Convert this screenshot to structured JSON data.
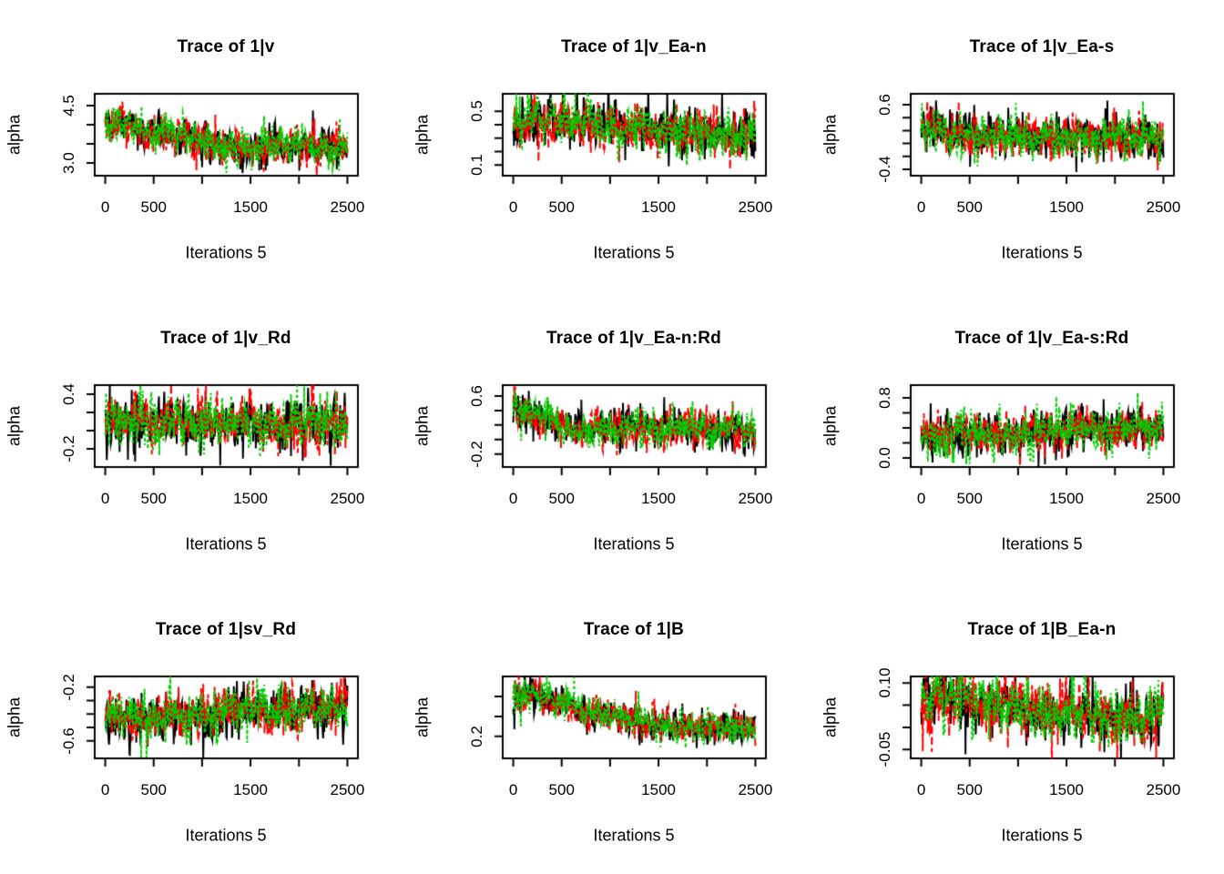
{
  "figure": {
    "background": "#FFFFFF",
    "rows": 3,
    "cols": 3,
    "description": "Grid of 9 MCMC trace plots, 3 chains each"
  },
  "chart_data": [
    {
      "type": "line",
      "title": "Trace of 1|v",
      "ylabel": "alpha",
      "xlabel": "Iterations 5",
      "xlim": [
        0,
        2500
      ],
      "ylim": [
        2.67,
        4.81
      ],
      "grid": false,
      "legend": "none",
      "x_ticks": [
        {
          "v": 0,
          "label": "0"
        },
        {
          "v": 500,
          "label": "500"
        },
        {
          "v": 1000,
          "label": ""
        },
        {
          "v": 1500,
          "label": "1500"
        },
        {
          "v": 2000,
          "label": ""
        },
        {
          "v": 2500,
          "label": "2500"
        }
      ],
      "y_ticks": [
        {
          "v": 3.0,
          "label": "3.0"
        },
        {
          "v": 3.5,
          "label": ""
        },
        {
          "v": 4.0,
          "label": ""
        },
        {
          "v": 4.5,
          "label": "4.5"
        }
      ],
      "series": [
        {
          "name": "chain 1",
          "color": "#000000",
          "style": "solid",
          "dash": []
        },
        {
          "name": "chain 2",
          "color": "#FF0000",
          "style": "dashed",
          "dash": [
            8,
            4
          ]
        },
        {
          "name": "chain 3",
          "color": "#00CD00",
          "style": "dotted",
          "dash": [
            3,
            3
          ]
        }
      ],
      "trend_keypoints": [
        [
          0,
          3.95
        ],
        [
          150,
          4.1
        ],
        [
          400,
          3.85
        ],
        [
          700,
          3.75
        ],
        [
          1000,
          3.6
        ],
        [
          1300,
          3.45
        ],
        [
          1800,
          3.42
        ],
        [
          2500,
          3.4
        ]
      ],
      "noise_sd": 0.21
    },
    {
      "type": "line",
      "title": "Trace of 1|v_Ea-n",
      "ylabel": "alpha",
      "xlabel": "Iterations 5",
      "xlim": [
        0,
        2500
      ],
      "ylim": [
        0.02,
        0.63
      ],
      "grid": false,
      "legend": "none",
      "x_ticks": [
        {
          "v": 0,
          "label": "0"
        },
        {
          "v": 500,
          "label": "500"
        },
        {
          "v": 1000,
          "label": ""
        },
        {
          "v": 1500,
          "label": "1500"
        },
        {
          "v": 2000,
          "label": ""
        },
        {
          "v": 2500,
          "label": "2500"
        }
      ],
      "y_ticks": [
        {
          "v": 0.1,
          "label": "0.1"
        },
        {
          "v": 0.2,
          "label": ""
        },
        {
          "v": 0.3,
          "label": ""
        },
        {
          "v": 0.4,
          "label": ""
        },
        {
          "v": 0.5,
          "label": "0.5"
        }
      ],
      "series": [
        {
          "name": "chain 1",
          "color": "#000000",
          "style": "solid",
          "dash": []
        },
        {
          "name": "chain 2",
          "color": "#FF0000",
          "style": "dashed",
          "dash": [
            8,
            4
          ]
        },
        {
          "name": "chain 3",
          "color": "#00CD00",
          "style": "dotted",
          "dash": [
            3,
            3
          ]
        }
      ],
      "trend_keypoints": [
        [
          0,
          0.4
        ],
        [
          200,
          0.42
        ],
        [
          800,
          0.41
        ],
        [
          1400,
          0.36
        ],
        [
          2000,
          0.33
        ],
        [
          2500,
          0.34
        ]
      ],
      "noise_sd": 0.075
    },
    {
      "type": "line",
      "title": "Trace of 1|v_Ea-s",
      "ylabel": "alpha",
      "xlabel": "Iterations 5",
      "xlim": [
        0,
        2500
      ],
      "ylim": [
        -0.5,
        0.77
      ],
      "grid": false,
      "legend": "none",
      "x_ticks": [
        {
          "v": 0,
          "label": "0"
        },
        {
          "v": 500,
          "label": "500"
        },
        {
          "v": 1000,
          "label": ""
        },
        {
          "v": 1500,
          "label": "1500"
        },
        {
          "v": 2000,
          "label": ""
        },
        {
          "v": 2500,
          "label": "2500"
        }
      ],
      "y_ticks": [
        {
          "v": -0.4,
          "label": "-0.4"
        },
        {
          "v": -0.2,
          "label": ""
        },
        {
          "v": 0.0,
          "label": ""
        },
        {
          "v": 0.2,
          "label": ""
        },
        {
          "v": 0.4,
          "label": ""
        },
        {
          "v": 0.6,
          "label": "0.6"
        }
      ],
      "series": [
        {
          "name": "chain 1",
          "color": "#000000",
          "style": "solid",
          "dash": []
        },
        {
          "name": "chain 2",
          "color": "#FF0000",
          "style": "dashed",
          "dash": [
            8,
            4
          ]
        },
        {
          "name": "chain 3",
          "color": "#00CD00",
          "style": "dotted",
          "dash": [
            3,
            3
          ]
        }
      ],
      "trend_keypoints": [
        [
          0,
          0.24
        ],
        [
          100,
          0.18
        ],
        [
          600,
          0.12
        ],
        [
          1200,
          0.1
        ],
        [
          1800,
          0.1
        ],
        [
          2500,
          0.09
        ]
      ],
      "noise_sd": 0.14
    },
    {
      "type": "line",
      "title": "Trace of 1|v_Rd",
      "ylabel": "alpha",
      "xlabel": "Iterations 5",
      "xlim": [
        0,
        2500
      ],
      "ylim": [
        -0.4,
        0.5
      ],
      "grid": false,
      "legend": "none",
      "x_ticks": [
        {
          "v": 0,
          "label": "0"
        },
        {
          "v": 500,
          "label": "500"
        },
        {
          "v": 1000,
          "label": ""
        },
        {
          "v": 1500,
          "label": "1500"
        },
        {
          "v": 2000,
          "label": ""
        },
        {
          "v": 2500,
          "label": "2500"
        }
      ],
      "y_ticks": [
        {
          "v": -0.2,
          "label": "-0.2"
        },
        {
          "v": 0.0,
          "label": ""
        },
        {
          "v": 0.2,
          "label": ""
        },
        {
          "v": 0.4,
          "label": "0.4"
        }
      ],
      "series": [
        {
          "name": "chain 1",
          "color": "#000000",
          "style": "solid",
          "dash": []
        },
        {
          "name": "chain 2",
          "color": "#FF0000",
          "style": "dashed",
          "dash": [
            8,
            4
          ]
        },
        {
          "name": "chain 3",
          "color": "#00CD00",
          "style": "dotted",
          "dash": [
            3,
            3
          ]
        }
      ],
      "trend_keypoints": [
        [
          0,
          0.12
        ],
        [
          500,
          0.09
        ],
        [
          1000,
          0.08
        ],
        [
          1500,
          0.09
        ],
        [
          2000,
          0.08
        ],
        [
          2500,
          0.09
        ]
      ],
      "noise_sd": 0.12
    },
    {
      "type": "line",
      "title": "Trace of 1|v_Ea-n:Rd",
      "ylabel": "alpha",
      "xlabel": "Iterations 5",
      "xlim": [
        0,
        2500
      ],
      "ylim": [
        -0.38,
        0.75
      ],
      "grid": false,
      "legend": "none",
      "x_ticks": [
        {
          "v": 0,
          "label": "0"
        },
        {
          "v": 500,
          "label": "500"
        },
        {
          "v": 1000,
          "label": ""
        },
        {
          "v": 1500,
          "label": "1500"
        },
        {
          "v": 2000,
          "label": ""
        },
        {
          "v": 2500,
          "label": "2500"
        }
      ],
      "y_ticks": [
        {
          "v": -0.2,
          "label": "-0.2"
        },
        {
          "v": 0.0,
          "label": ""
        },
        {
          "v": 0.2,
          "label": ""
        },
        {
          "v": 0.4,
          "label": ""
        },
        {
          "v": 0.6,
          "label": "0.6"
        }
      ],
      "series": [
        {
          "name": "chain 1",
          "color": "#000000",
          "style": "solid",
          "dash": []
        },
        {
          "name": "chain 2",
          "color": "#FF0000",
          "style": "dashed",
          "dash": [
            8,
            4
          ]
        },
        {
          "name": "chain 3",
          "color": "#00CD00",
          "style": "dotted",
          "dash": [
            3,
            3
          ]
        }
      ],
      "trend_keypoints": [
        [
          0,
          0.4
        ],
        [
          250,
          0.33
        ],
        [
          550,
          0.18
        ],
        [
          700,
          0.13
        ],
        [
          1200,
          0.15
        ],
        [
          1700,
          0.16
        ],
        [
          2100,
          0.17
        ],
        [
          2500,
          0.12
        ]
      ],
      "noise_sd": 0.11
    },
    {
      "type": "line",
      "title": "Trace of 1|v_Ea-s:Rd",
      "ylabel": "alpha",
      "xlabel": "Iterations 5",
      "xlim": [
        0,
        2500
      ],
      "ylim": [
        -0.12,
        0.97
      ],
      "grid": false,
      "legend": "none",
      "x_ticks": [
        {
          "v": 0,
          "label": "0"
        },
        {
          "v": 500,
          "label": "500"
        },
        {
          "v": 1000,
          "label": ""
        },
        {
          "v": 1500,
          "label": "1500"
        },
        {
          "v": 2000,
          "label": ""
        },
        {
          "v": 2500,
          "label": "2500"
        }
      ],
      "y_ticks": [
        {
          "v": 0.0,
          "label": "0.0"
        },
        {
          "v": 0.2,
          "label": ""
        },
        {
          "v": 0.4,
          "label": ""
        },
        {
          "v": 0.6,
          "label": ""
        },
        {
          "v": 0.8,
          "label": "0.8"
        }
      ],
      "series": [
        {
          "name": "chain 1",
          "color": "#000000",
          "style": "solid",
          "dash": []
        },
        {
          "name": "chain 2",
          "color": "#FF0000",
          "style": "dashed",
          "dash": [
            8,
            4
          ]
        },
        {
          "name": "chain 3",
          "color": "#00CD00",
          "style": "dotted",
          "dash": [
            3,
            3
          ]
        }
      ],
      "trend_keypoints": [
        [
          0,
          0.3
        ],
        [
          400,
          0.28
        ],
        [
          900,
          0.33
        ],
        [
          1400,
          0.38
        ],
        [
          1900,
          0.4
        ],
        [
          2500,
          0.4
        ]
      ],
      "noise_sd": 0.12
    },
    {
      "type": "line",
      "title": "Trace of 1|sv_Rd",
      "ylabel": "alpha",
      "xlabel": "Iterations 5",
      "xlim": [
        0,
        2500
      ],
      "ylim": [
        -0.73,
        -0.12
      ],
      "grid": false,
      "legend": "none",
      "x_ticks": [
        {
          "v": 0,
          "label": "0"
        },
        {
          "v": 500,
          "label": "500"
        },
        {
          "v": 1000,
          "label": ""
        },
        {
          "v": 1500,
          "label": "1500"
        },
        {
          "v": 2000,
          "label": ""
        },
        {
          "v": 2500,
          "label": "2500"
        }
      ],
      "y_ticks": [
        {
          "v": -0.6,
          "label": "-0.6"
        },
        {
          "v": -0.5,
          "label": ""
        },
        {
          "v": -0.4,
          "label": ""
        },
        {
          "v": -0.3,
          "label": ""
        },
        {
          "v": -0.2,
          "label": "-0.2"
        }
      ],
      "series": [
        {
          "name": "chain 1",
          "color": "#000000",
          "style": "solid",
          "dash": []
        },
        {
          "name": "chain 2",
          "color": "#FF0000",
          "style": "dashed",
          "dash": [
            8,
            4
          ]
        },
        {
          "name": "chain 3",
          "color": "#00CD00",
          "style": "dotted",
          "dash": [
            3,
            3
          ]
        }
      ],
      "trend_keypoints": [
        [
          0,
          -0.44
        ],
        [
          300,
          -0.44
        ],
        [
          700,
          -0.4
        ],
        [
          1000,
          -0.42
        ],
        [
          1300,
          -0.36
        ],
        [
          1700,
          -0.37
        ],
        [
          2100,
          -0.35
        ],
        [
          2500,
          -0.34
        ]
      ],
      "noise_sd": 0.075
    },
    {
      "type": "line",
      "title": "Trace of 1|B",
      "ylabel": "alpha",
      "xlabel": "Iterations 5",
      "xlim": [
        0,
        2500
      ],
      "ylim": [
        0.09,
        0.5
      ],
      "grid": false,
      "legend": "none",
      "x_ticks": [
        {
          "v": 0,
          "label": "0"
        },
        {
          "v": 500,
          "label": "500"
        },
        {
          "v": 1000,
          "label": ""
        },
        {
          "v": 1500,
          "label": "1500"
        },
        {
          "v": 2000,
          "label": ""
        },
        {
          "v": 2500,
          "label": "2500"
        }
      ],
      "y_ticks": [
        {
          "v": 0.2,
          "label": "0.2"
        },
        {
          "v": 0.3,
          "label": ""
        },
        {
          "v": 0.4,
          "label": ""
        }
      ],
      "series": [
        {
          "name": "chain 1",
          "color": "#000000",
          "style": "solid",
          "dash": []
        },
        {
          "name": "chain 2",
          "color": "#FF0000",
          "style": "dashed",
          "dash": [
            8,
            4
          ]
        },
        {
          "name": "chain 3",
          "color": "#00CD00",
          "style": "dotted",
          "dash": [
            3,
            3
          ]
        }
      ],
      "trend_keypoints": [
        [
          0,
          0.38
        ],
        [
          150,
          0.42
        ],
        [
          500,
          0.36
        ],
        [
          900,
          0.31
        ],
        [
          1400,
          0.26
        ],
        [
          1800,
          0.25
        ],
        [
          2500,
          0.245
        ]
      ],
      "noise_sd": 0.035
    },
    {
      "type": "line",
      "title": "Trace of 1|B_Ea-n",
      "ylabel": "alpha",
      "xlabel": "Iterations 5",
      "xlim": [
        0,
        2500
      ],
      "ylim": [
        -0.07,
        0.115
      ],
      "grid": false,
      "legend": "none",
      "x_ticks": [
        {
          "v": 0,
          "label": "0"
        },
        {
          "v": 500,
          "label": "500"
        },
        {
          "v": 1000,
          "label": ""
        },
        {
          "v": 1500,
          "label": "1500"
        },
        {
          "v": 2000,
          "label": ""
        },
        {
          "v": 2500,
          "label": "2500"
        }
      ],
      "y_ticks": [
        {
          "v": -0.05,
          "label": "-0.05"
        },
        {
          "v": 0.0,
          "label": ""
        },
        {
          "v": 0.05,
          "label": ""
        },
        {
          "v": 0.1,
          "label": "0.10"
        }
      ],
      "series": [
        {
          "name": "chain 1",
          "color": "#000000",
          "style": "solid",
          "dash": []
        },
        {
          "name": "chain 2",
          "color": "#FF0000",
          "style": "dashed",
          "dash": [
            8,
            4
          ]
        },
        {
          "name": "chain 3",
          "color": "#00CD00",
          "style": "dotted",
          "dash": [
            3,
            3
          ]
        }
      ],
      "trend_keypoints": [
        [
          0,
          0.05
        ],
        [
          150,
          0.07
        ],
        [
          400,
          0.065
        ],
        [
          800,
          0.05
        ],
        [
          1200,
          0.04
        ],
        [
          1600,
          0.03
        ],
        [
          2000,
          0.025
        ],
        [
          2500,
          0.025
        ]
      ],
      "noise_sd": 0.028
    }
  ]
}
